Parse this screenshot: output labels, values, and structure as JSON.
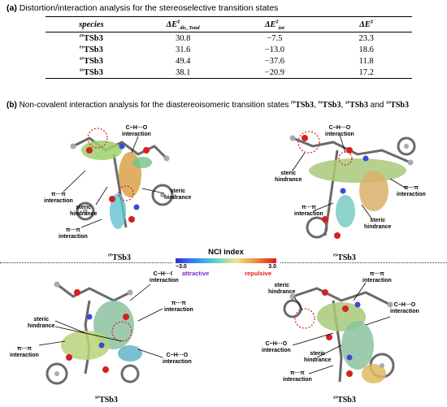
{
  "section_a": {
    "letter": "(a)",
    "title": "Distortion/interaction analysis for the stereoselective transition states"
  },
  "table": {
    "headers": {
      "species": "species",
      "dist": "ΔE‡dis_Total",
      "int": "ΔE‡int",
      "total": "ΔE‡"
    },
    "rows": [
      {
        "sup": "rr",
        "base": "TSb3",
        "dist": "30.8",
        "int": "−7.5",
        "total": "23.3"
      },
      {
        "sup": "rs",
        "base": "TSb3",
        "dist": "31.6",
        "int": "−13.0",
        "total": "18.6"
      },
      {
        "sup": "sr",
        "base": "TSb3",
        "dist": "49.4",
        "int": "−37.6",
        "total": "11.8"
      },
      {
        "sup": "ss",
        "base": "TSb3",
        "dist": "38.1",
        "int": "−20.9",
        "total": "17.2"
      }
    ]
  },
  "section_b": {
    "letter": "(b)",
    "title_prefix": "Non-covalent interaction analysis for the diastereoisomeric transition states ",
    "ts": [
      {
        "sup": "rr",
        "base": "TSb3"
      },
      {
        "sup": "rs",
        "base": "TSb3"
      },
      {
        "sup": "sr",
        "base": "TSb3"
      },
      {
        "sup": "ss",
        "base": "TSb3"
      }
    ],
    "sep1": ", ",
    "sep2": " and "
  },
  "legend": {
    "title": "NCI index",
    "min": "−3.0",
    "max": "3.0",
    "attractive": "attractive",
    "repulsive": "repulsive",
    "colors": {
      "attractive": "#7a2ad6",
      "repulsive": "#d81b1b"
    }
  },
  "panels": {
    "rr": {
      "caption_sup": "rr",
      "caption_base": "TSb3",
      "labels": [
        "C−H···O",
        "interaction",
        "π···π",
        "interaction",
        "steric",
        "hindrance",
        "steric",
        "hindrance",
        "π···π",
        "interaction"
      ]
    },
    "rs": {
      "caption_sup": "rs",
      "caption_base": "TSb3",
      "labels": [
        "C−H···O",
        "interaction",
        "steric",
        "hindrance",
        "π···π",
        "interaction",
        "π···π",
        "interaction",
        "steric",
        "hindrance"
      ]
    },
    "sr": {
      "caption_sup": "sr",
      "caption_base": "TSb3",
      "labels": [
        "C−H···O",
        "interaction",
        "π···π",
        "interaction",
        "steric",
        "hindrance",
        "π···π",
        "interaction",
        "C−H···O",
        "interaction"
      ]
    },
    "ss": {
      "caption_sup": "ss",
      "caption_base": "TSb3",
      "labels": [
        "π···π",
        "interaction",
        "steric",
        "hindrance",
        "C−H···O",
        "interaction",
        "C−H···O",
        "interaction",
        "steric",
        "hindrance",
        "π···π",
        "interaction"
      ]
    }
  }
}
